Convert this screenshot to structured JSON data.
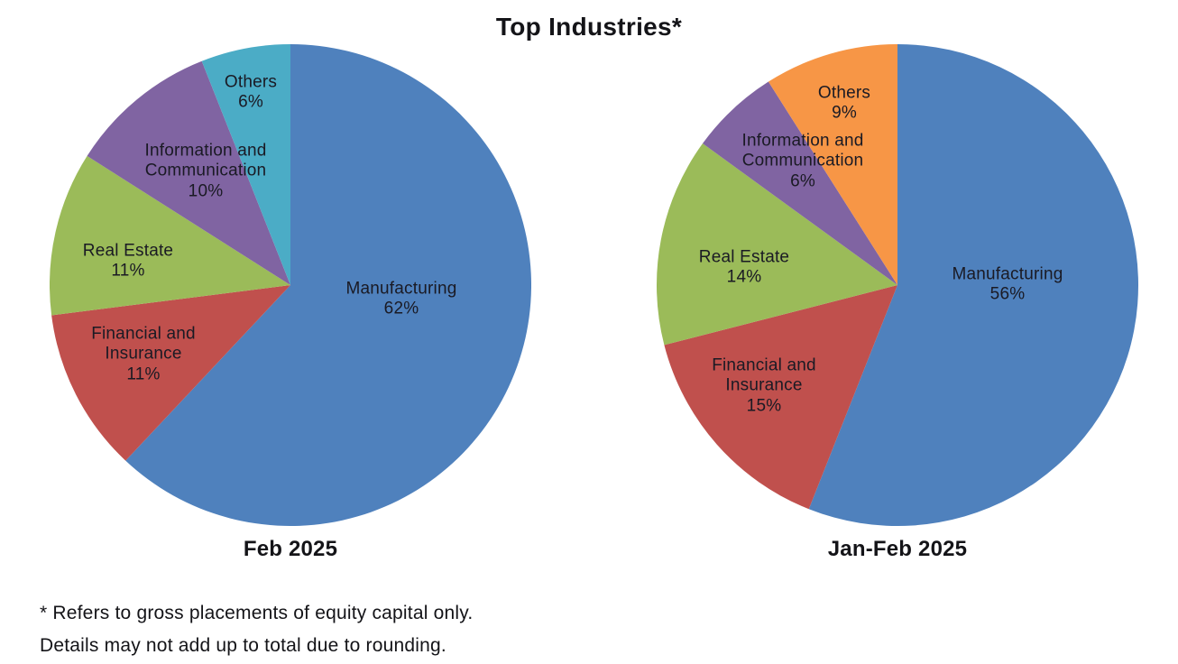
{
  "title": "Top Industries*",
  "footnotes": {
    "line1": "* Refers to gross placements of equity capital only.",
    "line2": "Details may not add up to total due to rounding."
  },
  "chart_data": [
    {
      "type": "pie",
      "title": "Feb 2025",
      "start_angle_deg": 0,
      "direction": "clockwise",
      "label_position": "inside",
      "labels": [
        "Manufacturing",
        "Financial and Insurance",
        "Real Estate",
        "Information and Communication",
        "Others"
      ],
      "values": [
        62,
        11,
        11,
        10,
        6
      ],
      "value_labels": [
        "62%",
        "11%",
        "11%",
        "10%",
        "6%"
      ],
      "colors": [
        "#4F81BD",
        "#C0504D",
        "#9BBB59",
        "#8064A2",
        "#4BACC6"
      ]
    },
    {
      "type": "pie",
      "title": "Jan-Feb 2025",
      "start_angle_deg": 0,
      "direction": "clockwise",
      "label_position": "inside",
      "labels": [
        "Manufacturing",
        "Financial and Insurance",
        "Real Estate",
        "Information and Communication",
        "Others"
      ],
      "values": [
        56,
        15,
        14,
        6,
        9
      ],
      "value_labels": [
        "56%",
        "15%",
        "14%",
        "6%",
        "9%"
      ],
      "colors": [
        "#4F81BD",
        "#C0504D",
        "#9BBB59",
        "#8064A2",
        "#F79646"
      ]
    }
  ]
}
